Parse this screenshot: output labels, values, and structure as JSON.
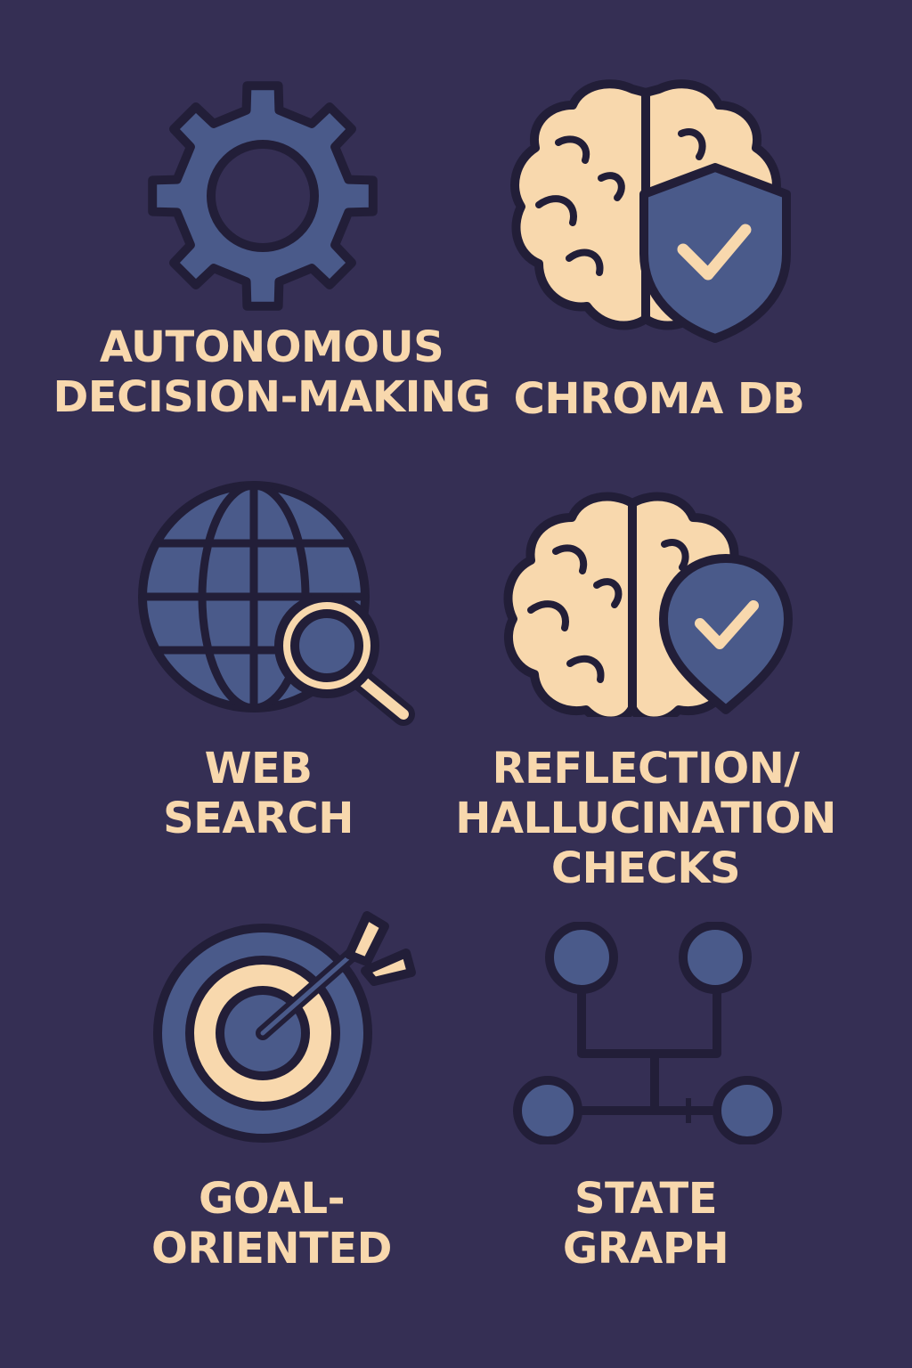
{
  "colors": {
    "background": "#352f54",
    "icon_blue": "#4a5a8a",
    "icon_peach": "#f8d8ad",
    "outline": "#221e38",
    "label_text": "#f8d8ad"
  },
  "features": [
    {
      "icon": "gear-icon",
      "lines": [
        "AUTONOMOUS",
        "DECISION-MAKING"
      ]
    },
    {
      "icon": "brain-shield-icon",
      "lines": [
        "CHROMA DB"
      ]
    },
    {
      "icon": "globe-search-icon",
      "lines": [
        "WEB",
        "SEARCH"
      ]
    },
    {
      "icon": "brain-check-pin-icon",
      "lines": [
        "REFLECTION/",
        "HALLUCINATION",
        "CHECKS"
      ]
    },
    {
      "icon": "target-arrow-icon",
      "lines": [
        "GOAL-",
        "ORIENTED"
      ]
    },
    {
      "icon": "state-graph-icon",
      "lines": [
        "STATE",
        "GRAPH"
      ]
    }
  ]
}
